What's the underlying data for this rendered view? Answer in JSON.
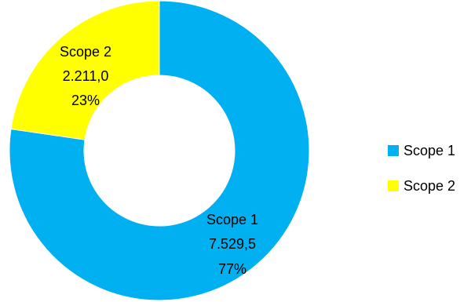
{
  "chart_data": {
    "type": "pie",
    "donut": true,
    "title": "",
    "categories": [
      "Scope 1",
      "Scope 2"
    ],
    "values": [
      7529.5,
      2211.0
    ],
    "value_labels": [
      "7.529,5",
      "2.211,0"
    ],
    "percent_labels": [
      "77%",
      "23%"
    ],
    "colors": [
      "#00B0F0",
      "#FFFF00"
    ],
    "legend": {
      "position": "right",
      "entries": [
        "Scope 1",
        "Scope 2"
      ]
    }
  }
}
